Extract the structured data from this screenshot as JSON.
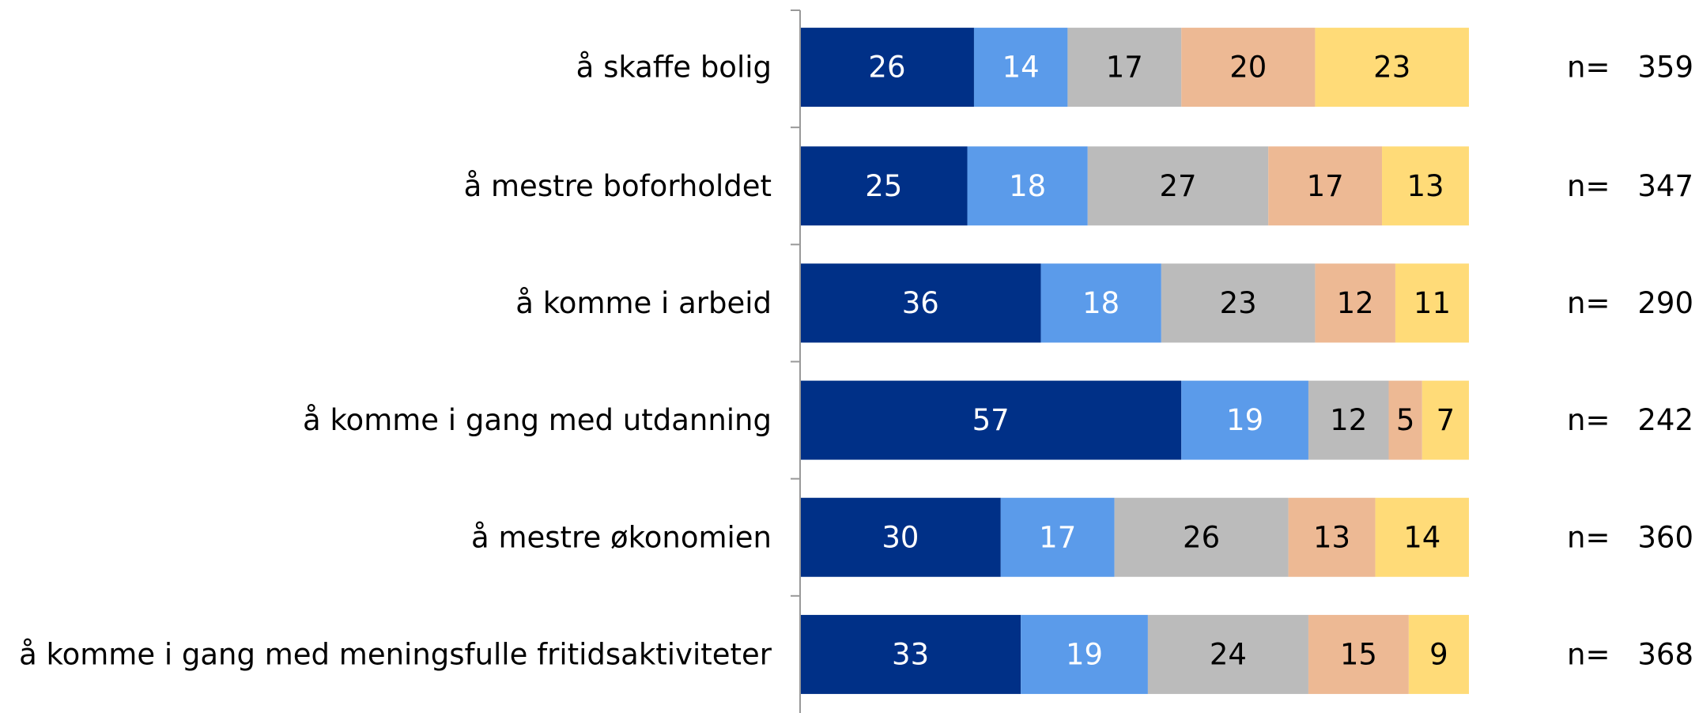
{
  "chart_data": {
    "type": "stacked-bar",
    "orientation": "horizontal",
    "categories": [
      "å skaffe bolig",
      "å mestre boforholdet",
      "å komme i arbeid",
      "å komme i gang med utdanning",
      "å mestre økonomien",
      "å komme i gang med meningsfulle fritidsaktiviteter"
    ],
    "series": [
      {
        "color": "#003087",
        "label_color": "#ffffff",
        "values": [
          26,
          25,
          36,
          57,
          30,
          33
        ]
      },
      {
        "color": "#5b9bea",
        "label_color": "#ffffff",
        "values": [
          14,
          18,
          18,
          19,
          17,
          19
        ]
      },
      {
        "color": "#bbbbbb",
        "label_color": "#000000",
        "values": [
          17,
          27,
          23,
          12,
          26,
          24
        ]
      },
      {
        "color": "#edb994",
        "label_color": "#000000",
        "values": [
          20,
          17,
          12,
          5,
          13,
          15
        ]
      },
      {
        "color": "#ffdb78",
        "label_color": "#000000",
        "values": [
          23,
          13,
          11,
          7,
          14,
          9
        ]
      }
    ],
    "n_prefix": "n=",
    "n": [
      359,
      347,
      290,
      242,
      360,
      368
    ],
    "xlim": [
      0,
      100
    ]
  }
}
